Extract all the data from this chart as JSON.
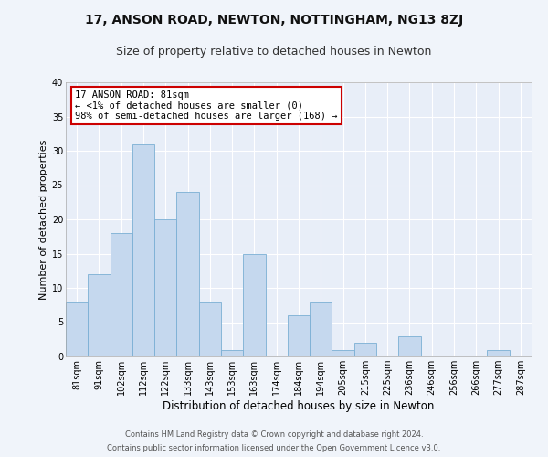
{
  "title": "17, ANSON ROAD, NEWTON, NOTTINGHAM, NG13 8ZJ",
  "subtitle": "Size of property relative to detached houses in Newton",
  "xlabel": "Distribution of detached houses by size in Newton",
  "ylabel": "Number of detached properties",
  "bin_labels": [
    "81sqm",
    "91sqm",
    "102sqm",
    "112sqm",
    "122sqm",
    "133sqm",
    "143sqm",
    "153sqm",
    "163sqm",
    "174sqm",
    "184sqm",
    "194sqm",
    "205sqm",
    "215sqm",
    "225sqm",
    "236sqm",
    "246sqm",
    "256sqm",
    "266sqm",
    "277sqm",
    "287sqm"
  ],
  "bar_values": [
    8,
    12,
    18,
    31,
    20,
    24,
    8,
    1,
    15,
    0,
    6,
    8,
    1,
    2,
    0,
    3,
    0,
    0,
    0,
    1,
    0
  ],
  "bar_color": "#c5d8ee",
  "bar_edge_color": "#7aafd4",
  "annotation_box_text": "17 ANSON ROAD: 81sqm\n← <1% of detached houses are smaller (0)\n98% of semi-detached houses are larger (168) →",
  "annotation_box_edge_color": "#cc0000",
  "annotation_box_face_color": "#ffffff",
  "footer_line1": "Contains HM Land Registry data © Crown copyright and database right 2024.",
  "footer_line2": "Contains public sector information licensed under the Open Government Licence v3.0.",
  "ylim": [
    0,
    40
  ],
  "yticks": [
    0,
    5,
    10,
    15,
    20,
    25,
    30,
    35,
    40
  ],
  "background_color": "#f0f4fa",
  "plot_bg_color": "#e8eef8",
  "grid_color": "#ffffff",
  "title_fontsize": 10,
  "subtitle_fontsize": 9,
  "xlabel_fontsize": 8.5,
  "ylabel_fontsize": 8,
  "tick_fontsize": 7,
  "annotation_fontsize": 7.5,
  "footer_fontsize": 6
}
